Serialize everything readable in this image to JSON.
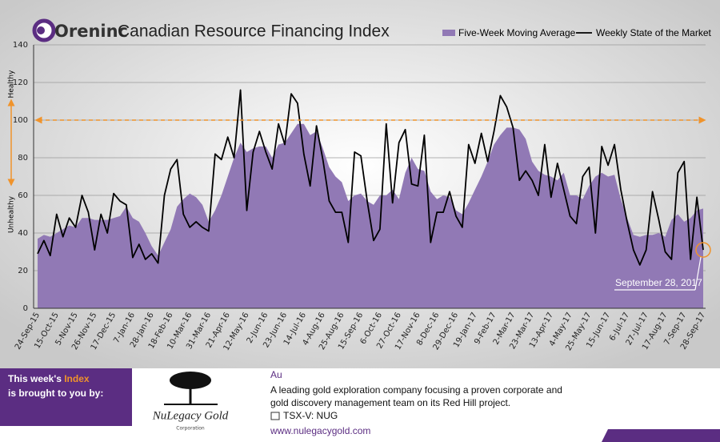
{
  "brand": "Oreninc",
  "chart_data": {
    "type": "line",
    "title": "Canadian Resource Financing Index",
    "categories": [
      "24-Sep-15",
      null,
      null,
      "15-Oct-15",
      null,
      null,
      "5-Nov-15",
      null,
      null,
      "26-Nov-15",
      null,
      null,
      "17-Dec-15",
      null,
      null,
      "7-Jan-16",
      null,
      null,
      "28-Jan-16",
      null,
      null,
      "18-Feb-16",
      null,
      null,
      "10-Mar-16",
      null,
      null,
      "31-Mar-16",
      null,
      null,
      "21-Apr-16",
      null,
      null,
      "12-May-16",
      null,
      null,
      "2-Jun-16",
      null,
      null,
      "23-Jun-16",
      null,
      null,
      "14-Jul-16",
      null,
      null,
      "4-Aug-16",
      null,
      null,
      "25-Aug-16",
      null,
      null,
      "15-Sep-16",
      null,
      null,
      "6-Oct-16",
      null,
      null,
      "27-Oct-16",
      null,
      null,
      "17-Nov-16",
      null,
      null,
      "8-Dec-16",
      null,
      null,
      "29-Dec-16",
      null,
      null,
      "19-Jan-17",
      null,
      null,
      "9-Feb-17",
      null,
      null,
      "2-Mar-17",
      null,
      null,
      "23-Mar-17",
      null,
      null,
      "13-Apr-17",
      null,
      null,
      "4-May-17",
      null,
      null,
      "25-May-17",
      null,
      null,
      "15-Jun-17",
      null,
      null,
      "6-Jul-17",
      null,
      null,
      "27-Jul-17",
      null,
      null,
      "17-Aug-17",
      null,
      null,
      "7-Sep-17",
      null,
      null,
      "28-Sep-17"
    ],
    "series": [
      {
        "name": "Five-Week Moving Average",
        "kind": "area",
        "color": "#9179b5",
        "values": [
          37,
          39,
          38,
          40,
          42,
          44,
          43,
          48,
          48,
          47,
          47,
          47,
          48,
          49,
          54,
          48,
          46,
          40,
          33,
          28,
          35,
          42,
          54,
          58,
          61,
          59,
          55,
          46,
          52,
          60,
          70,
          80,
          88,
          83,
          85,
          86,
          86,
          80,
          87,
          88,
          93,
          98,
          98,
          92,
          94,
          85,
          75,
          70,
          67,
          57,
          60,
          61,
          57,
          55,
          60,
          60,
          63,
          58,
          72,
          80,
          74,
          73,
          62,
          58,
          60,
          59,
          52,
          50,
          56,
          63,
          70,
          78,
          87,
          92,
          96,
          96,
          95,
          90,
          78,
          73,
          71,
          70,
          68,
          72,
          60,
          60,
          58,
          65,
          70,
          72,
          70,
          71,
          58,
          48,
          39,
          38,
          39,
          39,
          40,
          38,
          47,
          50,
          46,
          48,
          52,
          53
        ]
      },
      {
        "name": "Weekly State of the Market",
        "kind": "line",
        "color": "#000000",
        "values": [
          29,
          36,
          28,
          50,
          38,
          48,
          43,
          60,
          51,
          31,
          50,
          40,
          61,
          57,
          55,
          27,
          34,
          26,
          29,
          24,
          60,
          74,
          79,
          50,
          43,
          46,
          43,
          41,
          82,
          79,
          91,
          80,
          116,
          52,
          83,
          94,
          83,
          74,
          98,
          87,
          114,
          109,
          82,
          65,
          97,
          79,
          57,
          51,
          51,
          35,
          83,
          81,
          57,
          36,
          42,
          98,
          56,
          88,
          95,
          66,
          65,
          92,
          35,
          51,
          51,
          62,
          49,
          43,
          87,
          77,
          93,
          78,
          94,
          113,
          107,
          96,
          68,
          73,
          68,
          60,
          87,
          59,
          77,
          63,
          49,
          45,
          70,
          75,
          40,
          86,
          76,
          87,
          63,
          46,
          31,
          23,
          31,
          62,
          47,
          30,
          26,
          72,
          78,
          26,
          59,
          31
        ]
      }
    ],
    "ylim": [
      0,
      140
    ],
    "yticks": [
      0,
      20,
      40,
      60,
      80,
      100,
      120,
      140
    ],
    "grid": true,
    "reference_line": 100,
    "axis_notes": {
      "top": "Healthy",
      "bottom": "Unhealthy"
    },
    "annotation": {
      "text": "September 28, 2017",
      "index": 105
    },
    "legend": "top-right"
  },
  "sponsor": {
    "intro": [
      "This week's ",
      "Index",
      " is brought to you by:"
    ],
    "company": "NuLegacy Gold",
    "company_sub": "Corporation",
    "symbol": "Au",
    "description": [
      "A leading gold exploration company focusing a proven corporate and",
      "gold discovery management team on its Red Hill project."
    ],
    "ticker": "TSX-V:  NUG",
    "url": "www.nulegacygold.com"
  }
}
